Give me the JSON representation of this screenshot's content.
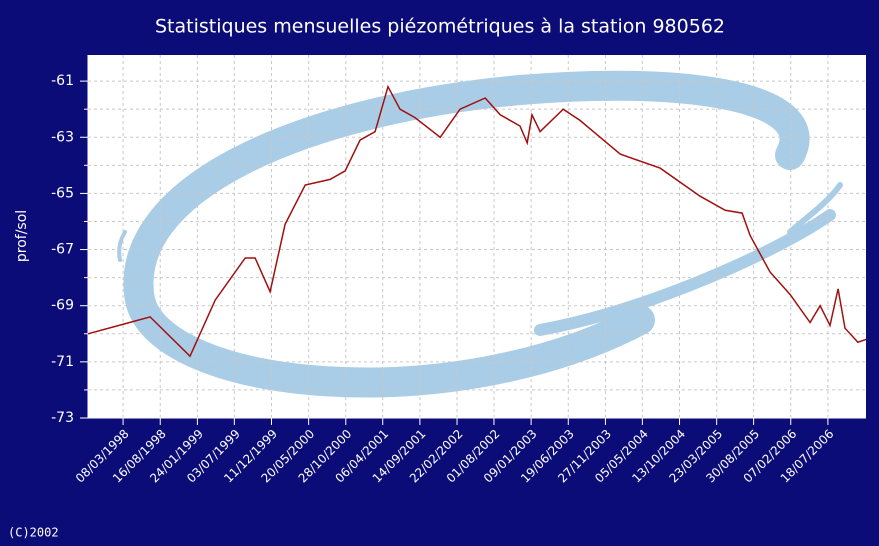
{
  "chart_data": {
    "type": "line",
    "title": "Statistiques mensuelles piézométriques à la station 980562",
    "ylabel": "prof/sol",
    "footer": "(C)2002",
    "x": [
      "07/10/1997",
      "03/07/1998",
      "23/12/1998",
      "11/04/1999",
      "19/08/1999",
      "01/10/1999",
      "05/12/1999",
      "08/02/2000",
      "05/05/2000",
      "21/08/2000",
      "25/10/2000",
      "29/12/2000",
      "04/03/2001",
      "29/04/2001",
      "20/06/2001",
      "24/08/2001",
      "11/12/2001",
      "07/03/2002",
      "24/06/2002",
      "28/08/2002",
      "22/11/2002",
      "23/12/2002",
      "13/01/2003",
      "17/02/2003",
      "28/05/2003",
      "09/08/2003",
      "30/01/2004",
      "21/07/2004",
      "10/01/2005",
      "29/04/2005",
      "11/07/2005",
      "15/08/2005",
      "09/11/2005",
      "04/02/2006",
      "02/05/2006",
      "14/06/2006",
      "27/07/2006",
      "31/08/2006",
      "30/09/2006",
      "25/11/2006",
      "30/12/2006"
    ],
    "series": [
      {
        "name": "prof/sol",
        "color": "#a01010",
        "values": [
          -70.0,
          -69.4,
          -70.8,
          -68.8,
          -67.3,
          -67.3,
          -68.5,
          -66.1,
          -64.7,
          -64.5,
          -64.2,
          -63.1,
          -62.8,
          -61.2,
          -62.0,
          -62.3,
          -63.0,
          -62.0,
          -61.6,
          -62.2,
          -62.6,
          -63.2,
          -62.2,
          -62.8,
          -62.0,
          -62.4,
          -63.6,
          -64.1,
          -65.1,
          -65.6,
          -65.7,
          -66.5,
          -67.8,
          -68.6,
          -69.6,
          -69.0,
          -69.7,
          -68.4,
          -69.8,
          -70.3,
          -70.2
        ]
      }
    ],
    "xlim": [
      "07/10/1997",
      "30/12/2006"
    ],
    "xticks": [
      "08/03/1998",
      "16/08/1998",
      "24/01/1999",
      "03/07/1999",
      "11/12/1999",
      "20/05/2000",
      "28/10/2000",
      "06/04/2001",
      "14/09/2001",
      "22/02/2002",
      "01/08/2002",
      "09/01/2003",
      "19/06/2003",
      "27/11/2003",
      "05/05/2004",
      "13/10/2004",
      "23/03/2005",
      "30/08/2005",
      "07/02/2006",
      "18/07/2006"
    ],
    "ylim": [
      -73,
      -60.07
    ],
    "yticks": [
      -73,
      -71,
      -69,
      -67,
      -65,
      -63,
      -61
    ],
    "grid": true
  }
}
